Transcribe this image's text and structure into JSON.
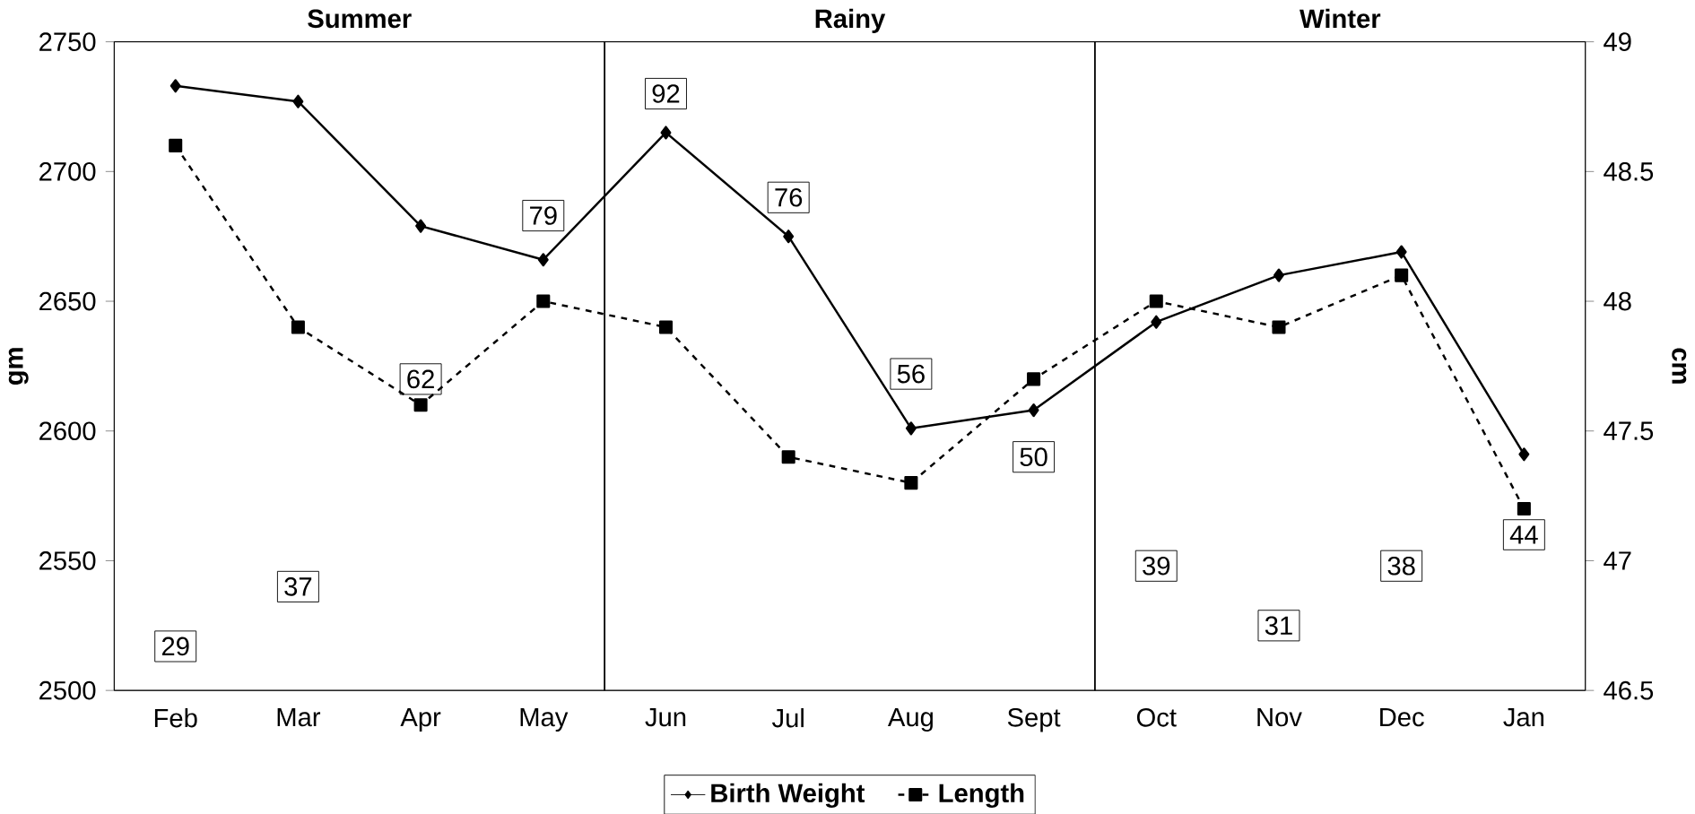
{
  "chart_data": {
    "type": "line",
    "ylabel": "gm",
    "y2label": "cm",
    "categories": [
      "Feb",
      "Mar",
      "Apr",
      "May",
      "Jun",
      "Jul",
      "Aug",
      "Sept",
      "Oct",
      "Nov",
      "Dec",
      "Jan"
    ],
    "series": [
      {
        "name": "Birth Weight",
        "color": "#000000",
        "marker": "diamond",
        "line_style": "solid",
        "values": [
          2733,
          2727,
          2679,
          2666,
          2715,
          2675,
          2601,
          2608,
          2642,
          2660,
          2669,
          2591
        ]
      },
      {
        "name": "Length",
        "color": "#000000",
        "marker": "square",
        "line_style": "dashed",
        "axis": "y2",
        "values": [
          48.6,
          47.9,
          47.6,
          48.0,
          47.9,
          47.4,
          47.3,
          47.7,
          48.0,
          47.9,
          48.1,
          47.2
        ]
      }
    ],
    "ylim": [
      2500,
      2750
    ],
    "yticks": [
      2500,
      2550,
      2600,
      2650,
      2700,
      2750
    ],
    "y2lim": [
      46.5,
      49
    ],
    "y2ticks": [
      46.5,
      47,
      47.5,
      48,
      48.5,
      49
    ],
    "annotations": [
      "Summer",
      "Rainy",
      "Winter",
      {
        "text": "29",
        "x": "Feb",
        "y": 2517
      },
      {
        "text": "37",
        "x": "Mar",
        "y": 2540
      },
      {
        "text": "62",
        "x": "Apr",
        "y": 2620
      },
      {
        "text": "79",
        "x": "May",
        "y": 2683
      },
      {
        "text": "92",
        "x": "Jun",
        "y": 2730
      },
      {
        "text": "76",
        "x": "Jul",
        "y": 2690
      },
      {
        "text": "56",
        "x": "Aug",
        "y": 2622
      },
      {
        "text": "50",
        "x": "Sept",
        "y": 2590
      },
      {
        "text": "39",
        "x": "Oct",
        "y": 2548
      },
      {
        "text": "31",
        "x": "Nov",
        "y": 2525
      },
      {
        "text": "38",
        "x": "Dec",
        "y": 2548
      },
      {
        "text": "44",
        "x": "Jan",
        "y": 2560
      }
    ],
    "grid": false,
    "legend": "bottom"
  }
}
